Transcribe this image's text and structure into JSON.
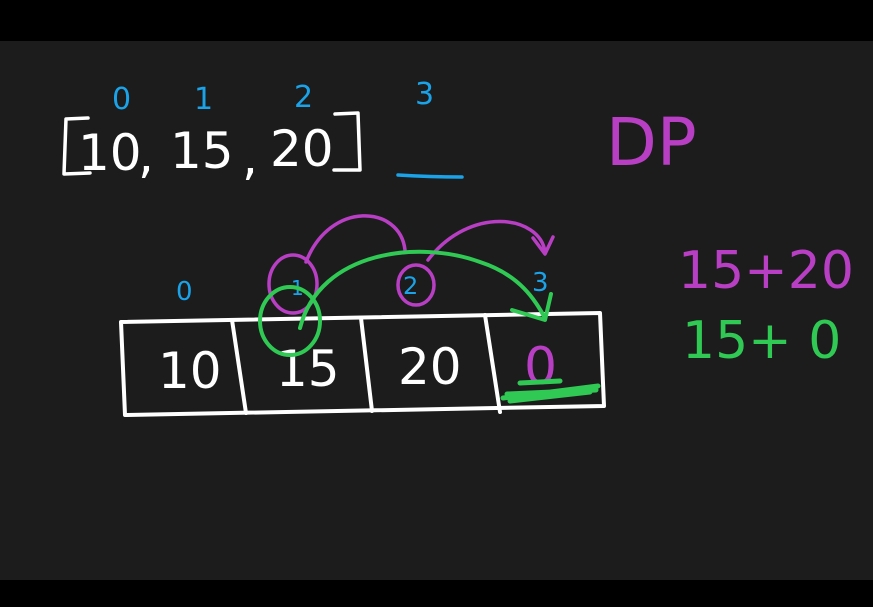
{
  "top_array": {
    "indices": [
      "0",
      "1",
      "2",
      "3"
    ],
    "values": [
      "10",
      "15",
      "20"
    ],
    "bracket_open": "[",
    "bracket_close": "]",
    "commas": [
      ",",
      ","
    ]
  },
  "dp_label": "DP",
  "table": {
    "indices": [
      "0",
      "1",
      "2",
      "3"
    ],
    "cells": [
      "10",
      "15",
      "20",
      "0"
    ]
  },
  "circle_labels": [
    "1",
    "2"
  ],
  "expressions": {
    "purple": "15+20",
    "green": "15+ 0"
  },
  "colors": {
    "background": "#1c1c1c",
    "letterbox": "#000000",
    "ink_white": "#ffffff",
    "ink_blue": "#1aa3e8",
    "ink_purple": "#b83fc4",
    "ink_green": "#2fc954"
  }
}
